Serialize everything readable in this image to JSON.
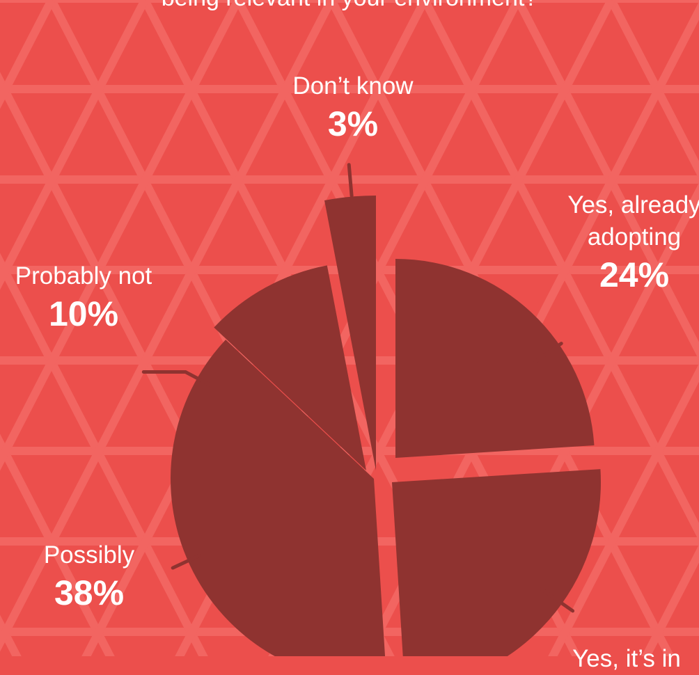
{
  "colors": {
    "background": "#ec4f4c",
    "pattern": "#f26561",
    "slice": "#8f3330",
    "text": "#ffffff"
  },
  "chart_data": {
    "type": "pie",
    "title": "being relevant in your environment?",
    "labels": [
      "Yes, already adopting",
      "Yes, it’s in",
      "Possibly",
      "Probably not",
      "Don’t know"
    ],
    "values": [
      24,
      25,
      38,
      10,
      3
    ],
    "display": {
      "yes_adopting_line1": "Yes, already",
      "yes_adopting_line2": "adopting",
      "yes_adopting_pct": "24%",
      "yes_in_partial": "Yes, it’s in",
      "possibly": "Possibly",
      "possibly_pct": "38%",
      "probably_not": "Probably not",
      "probably_not_pct": "10%",
      "dont_know": "Don’t know",
      "dont_know_pct": "3%"
    }
  }
}
